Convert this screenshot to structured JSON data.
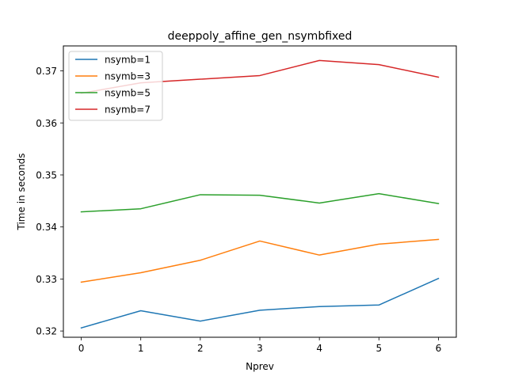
{
  "chart_data": {
    "type": "line",
    "title": "deeppoly_affine_gen_nsymbfixed",
    "xlabel": "Nprev",
    "ylabel": "Time in seconds",
    "x": [
      0,
      1,
      2,
      3,
      4,
      5,
      6
    ],
    "xlim": [
      -0.3,
      6.3
    ],
    "ylim": [
      0.3188,
      0.3748
    ],
    "xticks": [
      "0",
      "1",
      "2",
      "3",
      "4",
      "5",
      "6"
    ],
    "yticks": [
      {
        "value": 0.32,
        "label": "0.32"
      },
      {
        "value": 0.33,
        "label": "0.33"
      },
      {
        "value": 0.34,
        "label": "0.34"
      },
      {
        "value": 0.35,
        "label": "0.35"
      },
      {
        "value": 0.36,
        "label": "0.36"
      },
      {
        "value": 0.37,
        "label": "0.37"
      }
    ],
    "grid": false,
    "legend_position": "top-left",
    "series": [
      {
        "name": "nsymb=1",
        "color": "#1f77b4",
        "values": [
          0.3206,
          0.3239,
          0.3219,
          0.324,
          0.3247,
          0.325,
          0.3301
        ]
      },
      {
        "name": "nsymb=3",
        "color": "#ff7f0e",
        "values": [
          0.3294,
          0.3312,
          0.3336,
          0.3373,
          0.3346,
          0.3367,
          0.3376
        ]
      },
      {
        "name": "nsymb=5",
        "color": "#2ca02c",
        "values": [
          0.3429,
          0.3435,
          0.3462,
          0.3461,
          0.3446,
          0.3464,
          0.3445
        ]
      },
      {
        "name": "nsymb=7",
        "color": "#d62728",
        "values": [
          0.3657,
          0.3677,
          0.3684,
          0.3691,
          0.372,
          0.3712,
          0.3688
        ]
      }
    ]
  }
}
